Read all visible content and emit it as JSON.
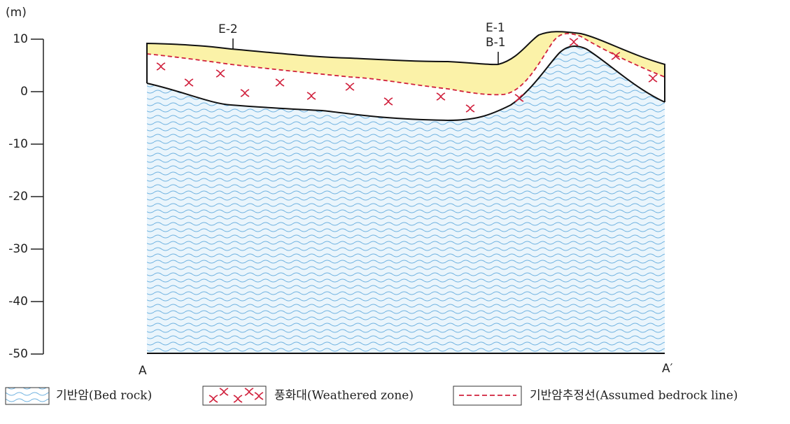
{
  "axis": {
    "unit": "(m)",
    "ticks": [
      10,
      0,
      -10,
      -20,
      -30,
      -40,
      -50
    ]
  },
  "boreholes": [
    "E-2",
    "E-1",
    "B-1"
  ],
  "section": {
    "start": "A",
    "end": "A′"
  },
  "legend": [
    "기반암(Bed rock)",
    "풍화대(Weathered zone)",
    "기반암추정선(Assumed bedrock line)"
  ]
}
